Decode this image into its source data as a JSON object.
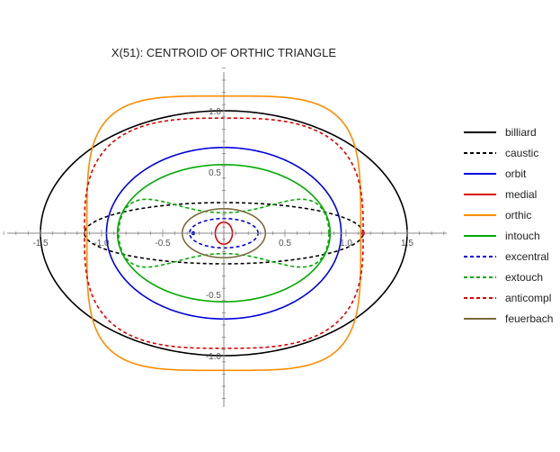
{
  "chart_data": {
    "type": "line",
    "title": "X(51): CENTROID OF ORTHIC TRIANGLE",
    "xlabel": "",
    "ylabel": "",
    "xlim": [
      -1.8,
      1.8
    ],
    "ylim": [
      -1.35,
      1.35
    ],
    "x_ticks": [
      -1.5,
      -1.0,
      -0.5,
      0.5,
      1.0,
      1.5
    ],
    "x_tick_labels": [
      "-1.5",
      "-1.0",
      "-0.5",
      "0.5",
      "1.0",
      "1.5"
    ],
    "y_ticks": [
      -1.0,
      -0.5,
      0.5,
      1.0
    ],
    "y_tick_labels": [
      "-1.0",
      "-0.5",
      "0.5",
      "1.0"
    ],
    "grid": false,
    "legend_position": "right",
    "series": [
      {
        "name": "billiard",
        "color": "#000000",
        "dash": "solid",
        "shape": "ellipse",
        "a": 1.5,
        "b": 1.0
      },
      {
        "name": "caustic",
        "color": "#000000",
        "dash": "dashed",
        "shape": "ellipse",
        "a": 1.14,
        "b": 0.25
      },
      {
        "name": "orbit",
        "color": "#0000dd",
        "dash": "solid",
        "shape": "ellipse",
        "a": 0.96,
        "b": 0.7
      },
      {
        "name": "medial",
        "color": "#dd0000",
        "dash": "solid",
        "shape": "ellipse",
        "a": 0.07,
        "b": 0.09
      },
      {
        "name": "orthic",
        "color": "#ff8c00",
        "dash": "solid",
        "shape": "superellipse",
        "a": 1.12,
        "b": 1.12,
        "n": 4
      },
      {
        "name": "intouch",
        "color": "#00aa00",
        "dash": "solid",
        "shape": "ellipse",
        "a": 0.87,
        "b": 0.56
      },
      {
        "name": "excentral",
        "color": "#0000dd",
        "dash": "dashed",
        "shape": "ellipse",
        "a": 0.28,
        "b": 0.12
      },
      {
        "name": "extouch",
        "color": "#00aa00",
        "dash": "dashed",
        "shape": "peanut",
        "a": 0.86,
        "b": 0.37,
        "k": 0.55
      },
      {
        "name": "anticompl",
        "color": "#dd0000",
        "dash": "dashed",
        "shape": "superellipse",
        "a": 1.14,
        "b": 0.94,
        "n": 3
      },
      {
        "name": "feuerbach",
        "color": "#7a6a3a",
        "dash": "solid",
        "shape": "ellipse",
        "a": 0.34,
        "b": 0.2
      }
    ]
  }
}
